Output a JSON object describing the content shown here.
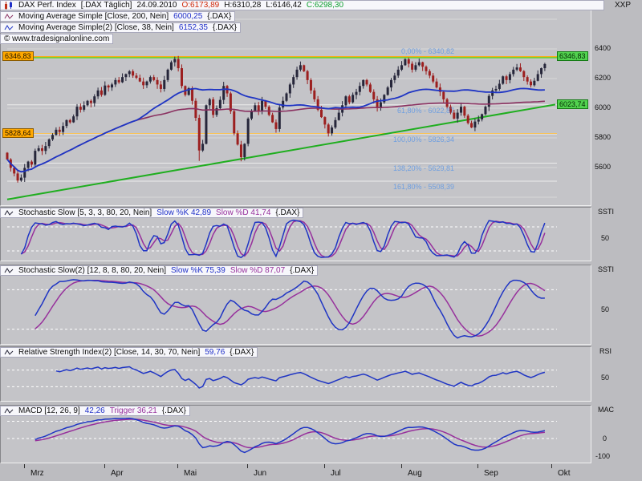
{
  "page": {
    "top_right_label": "XXP"
  },
  "main_panel": {
    "header": {
      "title": "DAX Perf. Index",
      "instrument": "[.DAX  Täglich]",
      "date": "24.09.2010",
      "open": "O:6173,89",
      "high": "H:6310,28",
      "low": "L:6146,42",
      "close": "C:6298,30"
    },
    "overlays": [
      {
        "label": "Moving Average Simple [Close, 200, Nein]",
        "value": "6000,25",
        "scope": "{.DAX}"
      },
      {
        "label": "Moving Average Simple(2) [Close, 38, Nein]",
        "value": "6152,35",
        "scope": "{.DAX}"
      }
    ],
    "watermark": "© www.tradesignalonline.com",
    "y_axis": [
      "6400",
      "6200",
      "6000",
      "5800",
      "5600"
    ],
    "price_marks": {
      "left_upper": "6346,83",
      "left_lower": "5828,64",
      "right_upper": "6346,83",
      "right_trend": "6023,74"
    },
    "fibonacci": [
      "0,00% - 6340,82",
      "61,80% - 6022,87",
      "100,00% - 5826,34",
      "138,20% - 5629,81",
      "161,80% - 5508,39"
    ]
  },
  "panels": [
    {
      "label": "Stochastic Slow [5, 3, 3, 80, 20, Nein]",
      "k_label": "Slow %K 42,89",
      "d_label": "Slow %D 41,74",
      "scope": "{.DAX}",
      "axis_title": "SSTI",
      "mid": "50"
    },
    {
      "label": "Stochastic Slow(2) [12, 8, 8, 80, 20, Nein]",
      "k_label": "Slow %K 75,39",
      "d_label": "Slow %D 87,07",
      "scope": "{.DAX}",
      "axis_title": "SSTI",
      "mid": "50"
    },
    {
      "label": "Relative Strength Index(2) [Close, 14, 30, 70, Nein]",
      "value": "59,76",
      "scope": "{.DAX}",
      "axis_title": "RSI",
      "mid": "50"
    },
    {
      "label": "MACD [12, 26, 9]",
      "value": "42,26",
      "trigger_label": "Trigger 36,21",
      "scope": "{.DAX}",
      "axis_title": "MAC",
      "zero": "0",
      "neg": "-100"
    }
  ],
  "x_axis": {
    "months": [
      "Mrz",
      "Apr",
      "Mai",
      "Jun",
      "Jul",
      "Aug",
      "Sep",
      "Okt"
    ]
  },
  "colors": {
    "candle_up": "#26263a",
    "candle_down": "#9c1f1f",
    "ma200": "#8a3060",
    "ma38": "#1f35c4",
    "k_line": "#1f35c4",
    "d_line": "#97309c",
    "trend": "#1fae1f",
    "grid": "#d8d8d8",
    "fib_line": "#ececec",
    "fib_zero": "#5cd637",
    "orange_line": "#ffa800",
    "threshold_dotted": "#ffffff"
  },
  "chart_data": [
    {
      "type": "candlestick",
      "title": "DAX Perf. Index [.DAX Täglich]",
      "ylim": [
        5360,
        6650
      ],
      "gridline_step": 200,
      "y_ticks": [
        6400,
        6200,
        6000,
        5800,
        5600
      ],
      "last_bar": {
        "open": 6173.89,
        "high": 6310.28,
        "low": 6146.42,
        "close": 6298.3
      },
      "close": [
        5655,
        5598,
        5560,
        5512,
        5532,
        5598,
        5640,
        5620,
        5713,
        5730,
        5712,
        5745,
        5790,
        5820,
        5855,
        5840,
        5880,
        5920,
        5905,
        5945,
        6010,
        5990,
        6020,
        6050,
        6035,
        6080,
        6120,
        6090,
        6153,
        6140,
        6160,
        6190,
        6175,
        6210,
        6230,
        6249,
        6220,
        6205,
        6180,
        6155,
        6180,
        6210,
        6190,
        6160,
        6130,
        6190,
        6260,
        6310,
        6332,
        6270,
        6150,
        6090,
        6135,
        6050,
        5935,
        5715,
        5760,
        6020,
        6060,
        5955,
        6000,
        6056,
        6150,
        6100,
        5980,
        5830,
        5755,
        5670,
        5760,
        5930,
        5980,
        6020,
        5980,
        6050,
        6010,
        5955,
        5905,
        5860,
        6005,
        6050,
        6100,
        6160,
        6210,
        6260,
        6290,
        6250,
        6190,
        6120,
        6060,
        5990,
        5940,
        5890,
        5830,
        5870,
        5920,
        5970,
        6020,
        6080,
        6040,
        6090,
        6110,
        6150,
        6190,
        6160,
        6110,
        6060,
        6000,
        6040,
        6090,
        6140,
        6190,
        6220,
        6260,
        6290,
        6330,
        6300,
        6260,
        6290,
        6310,
        6280,
        6250,
        6220,
        6180,
        6140,
        6110,
        6060,
        6010,
        5970,
        5930,
        5970,
        6010,
        5950,
        5900,
        5870,
        5910,
        5925,
        5960,
        6010,
        6083,
        6120,
        6130,
        6165,
        6215,
        6190,
        6230,
        6260,
        6275,
        6250,
        6210,
        6180,
        6155,
        6185,
        6230,
        6270,
        6298
      ],
      "overlays": [
        {
          "name": "Moving Average Simple 200",
          "last": 6000.25
        },
        {
          "name": "Moving Average Simple 38",
          "last": 6152.35
        }
      ],
      "hlines": [
        {
          "price": 6346.83,
          "style": "orange",
          "label": "6346,83"
        },
        {
          "price": 5828.64,
          "style": "orange",
          "label": "5828,64"
        },
        {
          "price": 6340.82,
          "style": "fib_zero",
          "label": "0,00%"
        },
        {
          "price": 6022.87,
          "style": "fib",
          "label": "61,80%"
        },
        {
          "price": 5826.34,
          "style": "fib",
          "label": "100,00%"
        },
        {
          "price": 5629.81,
          "style": "fib",
          "label": "138,20%"
        },
        {
          "price": 5508.39,
          "style": "fib",
          "label": "161,80%"
        }
      ],
      "trendline": {
        "start_index": 0,
        "start_price": 5385,
        "end_index": 157,
        "end_price": 6025
      }
    },
    {
      "type": "line",
      "name": "Stochastic Slow",
      "params": {
        "period": 5,
        "k_smooth": 3,
        "d_smooth": 3,
        "upper": 80,
        "lower": 20
      },
      "ylim": [
        0,
        100
      ],
      "last": {
        "slow_k": 42.89,
        "slow_d": 41.74
      },
      "computed_from": "chart_data[0].close"
    },
    {
      "type": "line",
      "name": "Stochastic Slow(2)",
      "params": {
        "period": 12,
        "k_smooth": 8,
        "d_smooth": 8,
        "upper": 80,
        "lower": 20
      },
      "ylim": [
        0,
        100
      ],
      "last": {
        "slow_k": 75.39,
        "slow_d": 87.07
      },
      "computed_from": "chart_data[0].close"
    },
    {
      "type": "line",
      "name": "Relative Strength Index(2)",
      "params": {
        "period": 14,
        "lower": 30,
        "upper": 70
      },
      "ylim": [
        0,
        100
      ],
      "last": 59.76,
      "computed_from": "chart_data[0].close"
    },
    {
      "type": "line",
      "name": "MACD",
      "params": {
        "fast": 12,
        "slow": 26,
        "signal": 9
      },
      "ylim": [
        -130,
        130
      ],
      "axis_marks": [
        0,
        -100
      ],
      "last": {
        "macd": 42.26,
        "trigger": 36.21
      },
      "computed_from": "chart_data[0].close"
    }
  ]
}
